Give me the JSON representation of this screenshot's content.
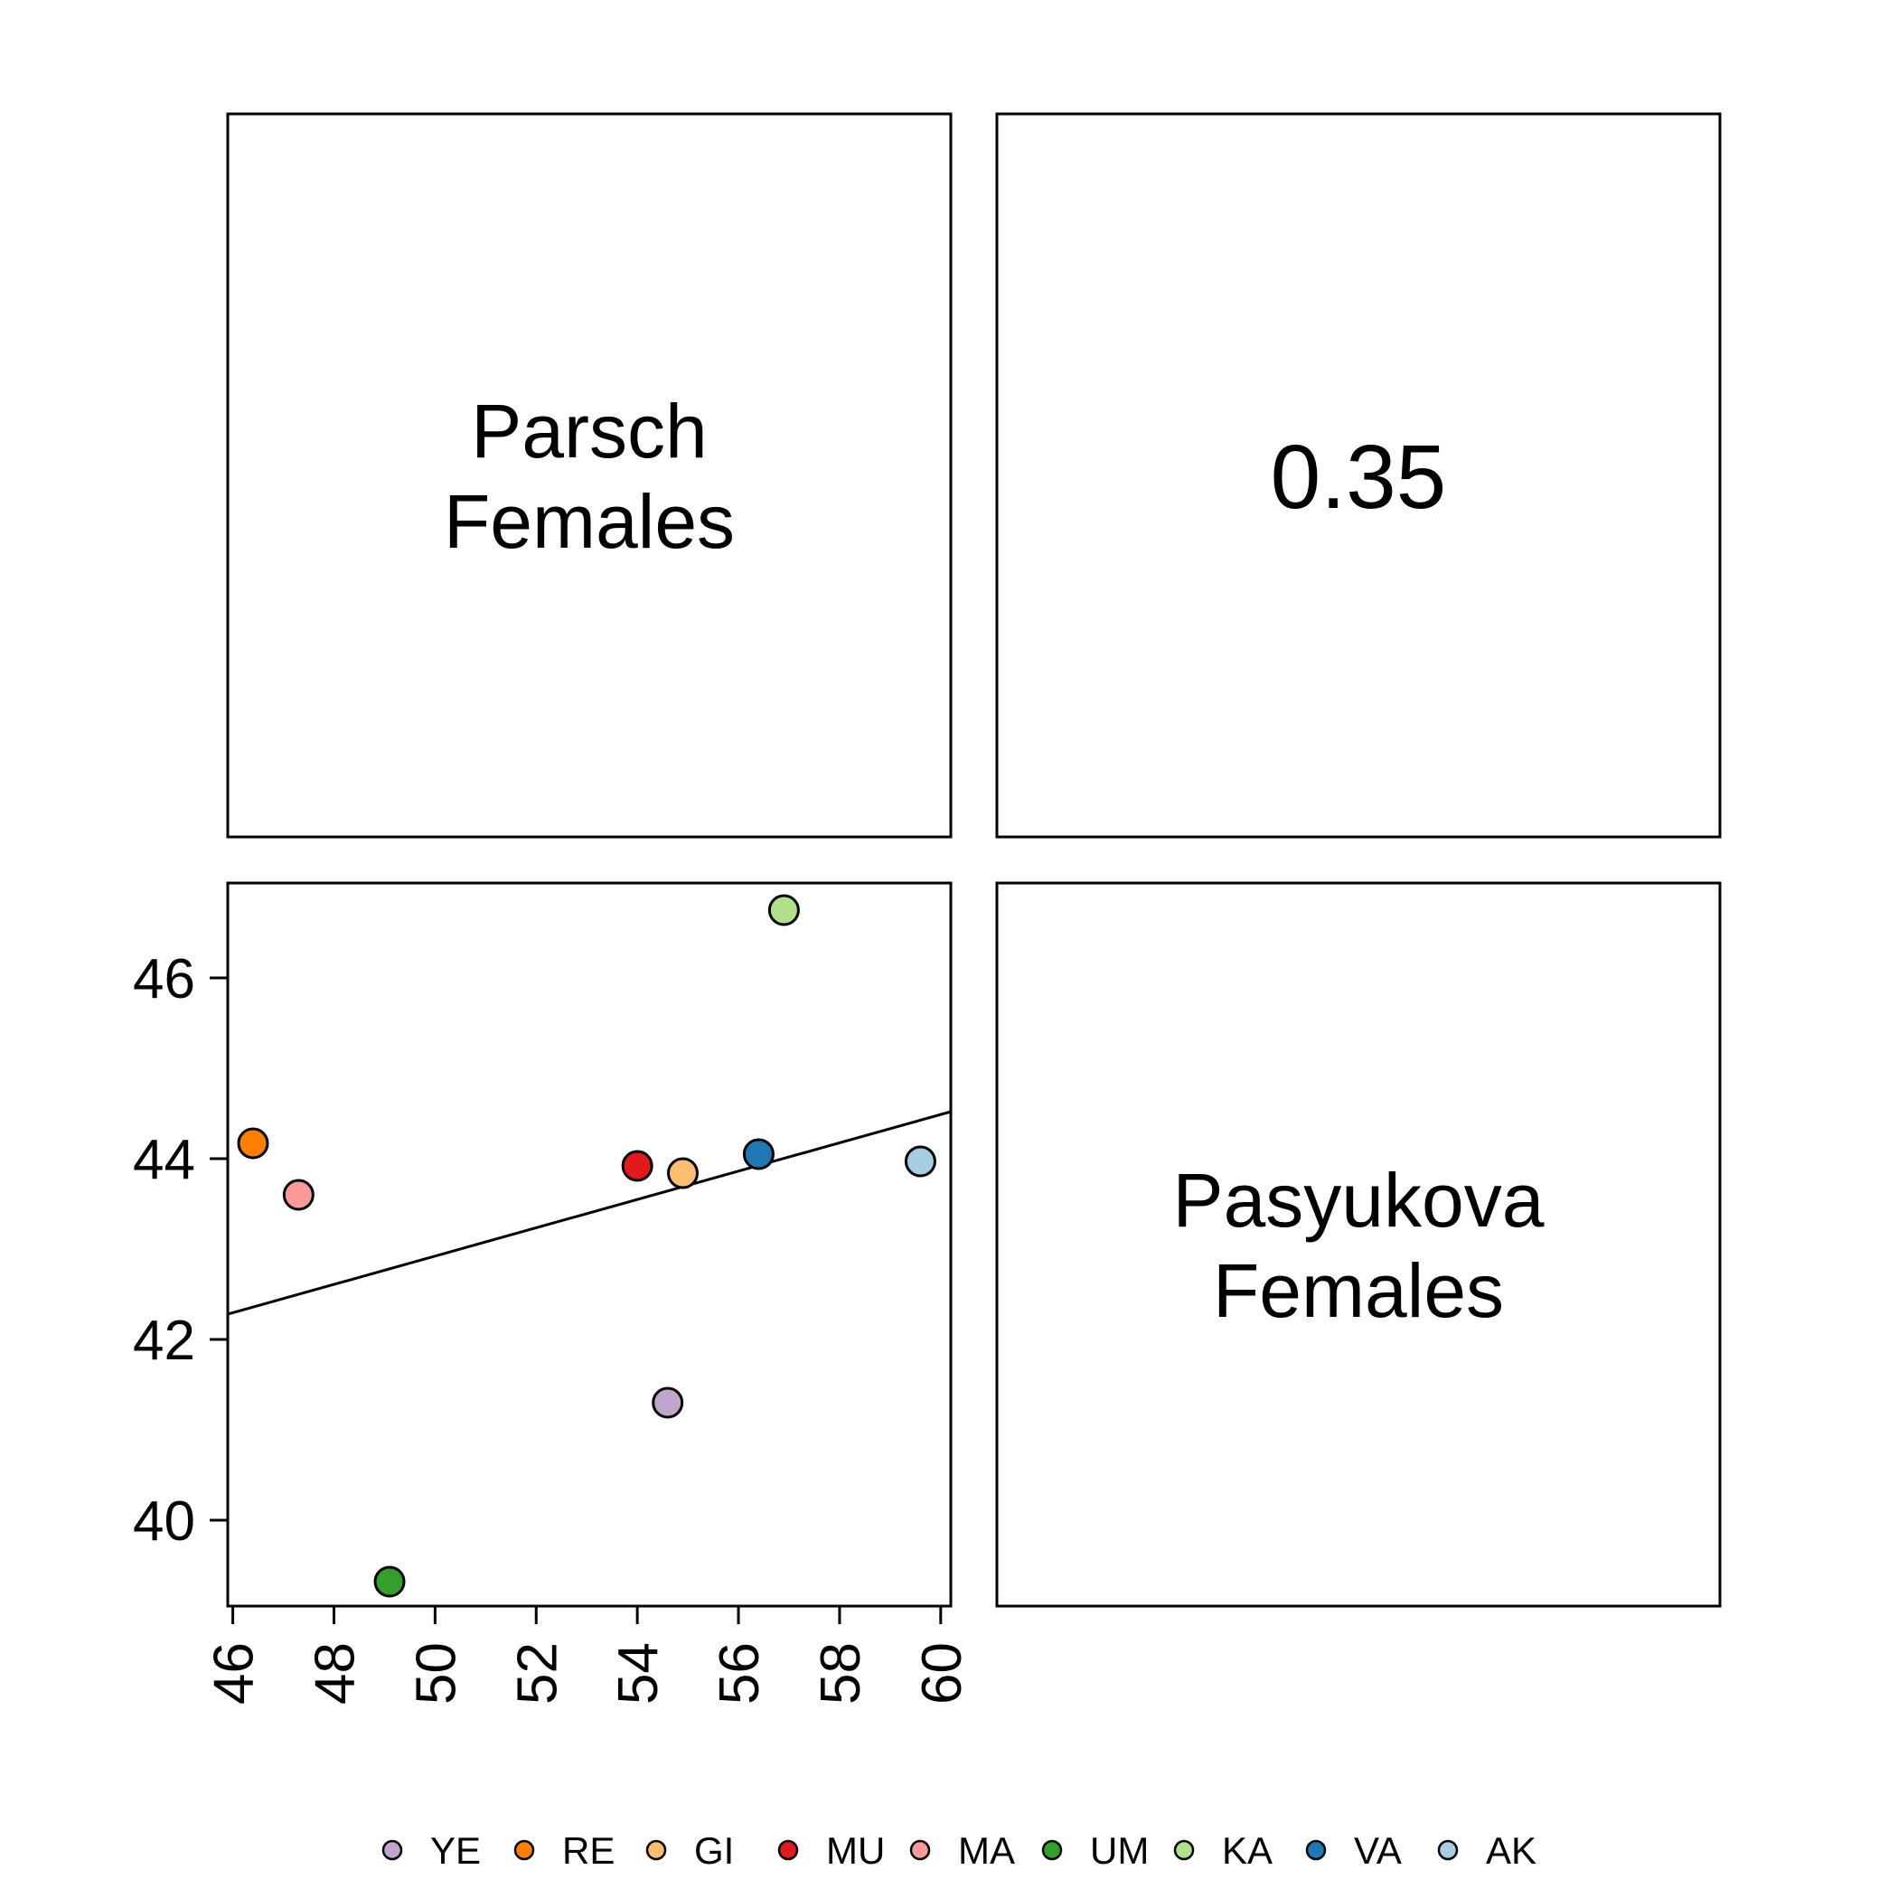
{
  "diagonal": {
    "top_left": {
      "line1": "Parsch",
      "line2": "Females"
    },
    "bottom_right": {
      "line1": "Pasyukova",
      "line2": "Females"
    }
  },
  "correlation_text": "0.35",
  "chart_data": {
    "type": "scatter",
    "title": "",
    "xlabel": "",
    "ylabel": "",
    "xlim": [
      45.9,
      60.2
    ],
    "ylim": [
      39.05,
      47.05
    ],
    "x_ticks": [
      46,
      48,
      50,
      52,
      54,
      56,
      58,
      60
    ],
    "x_tick_labels": [
      "46",
      "48",
      "50",
      "52",
      "54",
      "56",
      "58",
      "60"
    ],
    "y_ticks": [
      40,
      42,
      44,
      46
    ],
    "y_tick_labels": [
      "40",
      "42",
      "44",
      "46"
    ],
    "grid": false,
    "points": [
      {
        "label": "YE",
        "x": 54.6,
        "y": 41.3,
        "color": "#c2a5cf"
      },
      {
        "label": "RE",
        "x": 46.4,
        "y": 44.17,
        "color": "#ff7f00"
      },
      {
        "label": "GI",
        "x": 54.9,
        "y": 43.84,
        "color": "#fdbf6f"
      },
      {
        "label": "MU",
        "x": 54.0,
        "y": 43.92,
        "color": "#e31a1c"
      },
      {
        "label": "MA",
        "x": 47.3,
        "y": 43.6,
        "color": "#fb9a99"
      },
      {
        "label": "UM",
        "x": 49.1,
        "y": 39.32,
        "color": "#33a02c"
      },
      {
        "label": "KA",
        "x": 56.9,
        "y": 46.75,
        "color": "#b2df8a"
      },
      {
        "label": "VA",
        "x": 56.4,
        "y": 44.05,
        "color": "#1f78b4"
      },
      {
        "label": "AK",
        "x": 59.6,
        "y": 43.97,
        "color": "#a6cee3"
      }
    ],
    "fit_line": {
      "x": [
        45.9,
        60.2
      ],
      "y": [
        42.28,
        44.52
      ]
    },
    "legend": {
      "position": "bottom",
      "entries": [
        {
          "label": "YE",
          "color": "#c2a5cf"
        },
        {
          "label": "RE",
          "color": "#ff7f00"
        },
        {
          "label": "GI",
          "color": "#fdbf6f"
        },
        {
          "label": "MU",
          "color": "#e31a1c"
        },
        {
          "label": "MA",
          "color": "#fb9a99"
        },
        {
          "label": "UM",
          "color": "#33a02c"
        },
        {
          "label": "KA",
          "color": "#b2df8a"
        },
        {
          "label": "VA",
          "color": "#1f78b4"
        },
        {
          "label": "AK",
          "color": "#a6cee3"
        }
      ]
    }
  }
}
